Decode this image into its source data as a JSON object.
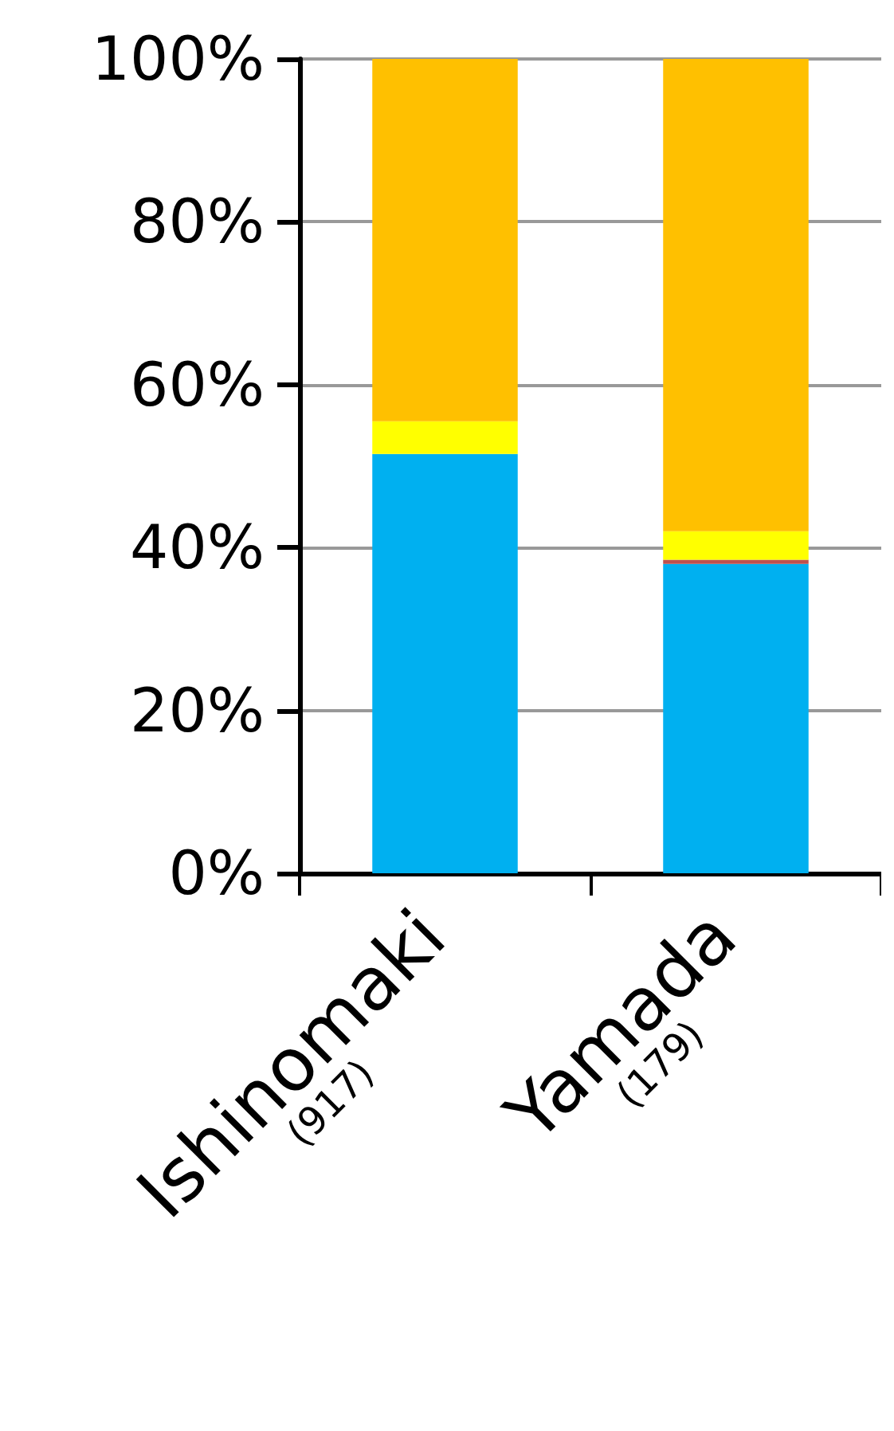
{
  "chart_data": {
    "type": "bar",
    "stacked": true,
    "categories": [
      "Ishinomaki\n(917)",
      "Yamada\n(179)"
    ],
    "series": [
      {
        "color": "#00b0f0",
        "values": [
          51.5,
          38
        ]
      },
      {
        "color": "#c0504d",
        "values": [
          0,
          0.5
        ]
      },
      {
        "color": "#ffff00",
        "values": [
          4,
          3.5
        ]
      },
      {
        "color": "#ffc000",
        "values": [
          44.5,
          58
        ]
      }
    ],
    "ylim": [
      0,
      100
    ],
    "yticks": [
      {
        "value": 0,
        "label": "0%"
      },
      {
        "value": 20,
        "label": "20%"
      },
      {
        "value": 40,
        "label": "40%"
      },
      {
        "value": 60,
        "label": "60%"
      },
      {
        "value": 80,
        "label": "80%"
      },
      {
        "value": 100,
        "label": "100%"
      }
    ],
    "grid": "y"
  }
}
